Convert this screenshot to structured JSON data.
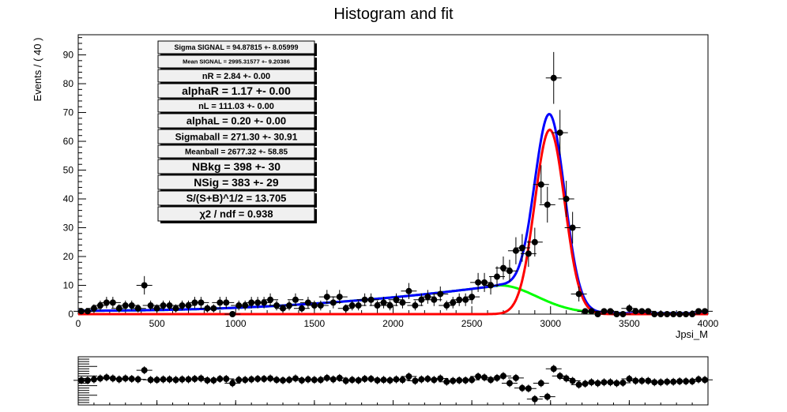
{
  "title": "Histogram and fit",
  "chart_data": {
    "type": "scatter",
    "title": "Histogram and fit",
    "xlabel": "Jpsi_M",
    "ylabel": "Events / ( 40 )",
    "xlim": [
      0,
      4000
    ],
    "ylim": [
      0,
      97
    ],
    "x_ticks": [
      "0",
      "500",
      "1000",
      "1500",
      "2000",
      "2500",
      "3000",
      "3500",
      "4000"
    ],
    "y_ticks": [
      "0",
      "10",
      "20",
      "30",
      "40",
      "50",
      "60",
      "70",
      "80",
      "90"
    ],
    "grid": false,
    "legend": "none",
    "stats_box": [
      "Sigma SIGNAL = 94.87815 +- 8.05999",
      "Mean SIGNAL = 2995.31577 +- 9.20386",
      "nR = 2.84 +- 0.00",
      "alphaR = 1.17 +- 0.00",
      "nL = 111.03 +- 0.00",
      "alphaL = 0.20 +- 0.00",
      "Sigmaball = 271.30 +- 30.91",
      "Meanball = 2677.32 +- 58.85",
      "NBkg = 398 +- 30",
      "NSig = 383 +- 29",
      "S/(S+B)^1/2 = 13.705",
      "χ2 / ndf = 0.938"
    ],
    "points": {
      "x": [
        20,
        60,
        100,
        140,
        180,
        220,
        260,
        300,
        340,
        380,
        420,
        460,
        500,
        540,
        580,
        620,
        660,
        700,
        740,
        780,
        820,
        860,
        900,
        940,
        980,
        1020,
        1060,
        1100,
        1140,
        1180,
        1220,
        1260,
        1300,
        1340,
        1380,
        1420,
        1460,
        1500,
        1540,
        1580,
        1620,
        1660,
        1700,
        1740,
        1780,
        1820,
        1860,
        1900,
        1940,
        1980,
        2020,
        2060,
        2100,
        2140,
        2180,
        2220,
        2260,
        2300,
        2340,
        2380,
        2420,
        2460,
        2500,
        2540,
        2580,
        2620,
        2660,
        2700,
        2740,
        2780,
        2820,
        2860,
        2900,
        2940,
        2980,
        3020,
        3060,
        3100,
        3140,
        3180,
        3220,
        3260,
        3300,
        3340,
        3380,
        3420,
        3460,
        3500,
        3540,
        3580,
        3620,
        3660,
        3700,
        3740,
        3780,
        3820,
        3860,
        3900,
        3940,
        3980
      ],
      "y": [
        1,
        1,
        2,
        3,
        4,
        4,
        2,
        3,
        3,
        2,
        10,
        3,
        2,
        3,
        3,
        2,
        3,
        3,
        4,
        4,
        2,
        2,
        4,
        4,
        0,
        3,
        3,
        4,
        4,
        4,
        5,
        3,
        2,
        3,
        5,
        2,
        4,
        3,
        3,
        6,
        4,
        6,
        2,
        3,
        3,
        5,
        5,
        3,
        4,
        3,
        5,
        4,
        8,
        3,
        5,
        6,
        5,
        7,
        3,
        4,
        5,
        5,
        6,
        11,
        11,
        10,
        13,
        16,
        15,
        22,
        23,
        21,
        25,
        45,
        38,
        82,
        63,
        40,
        30,
        7,
        1,
        1,
        0,
        1,
        1,
        0,
        0,
        2,
        1,
        1,
        1,
        0,
        0,
        0,
        0,
        0,
        0,
        0,
        1,
        1
      ],
      "err": [
        1,
        1,
        1.4,
        1.7,
        2,
        2,
        1.4,
        1.7,
        1.7,
        1.4,
        3.2,
        1.7,
        1.4,
        1.7,
        1.7,
        1.4,
        1.7,
        1.7,
        2,
        2,
        1.4,
        1.4,
        2,
        2,
        1,
        1.7,
        1.7,
        2,
        2,
        2,
        2.2,
        1.7,
        1.4,
        1.7,
        2.2,
        1.4,
        2,
        1.7,
        1.7,
        2.4,
        2,
        2.4,
        1.4,
        1.7,
        1.7,
        2.2,
        2.2,
        1.7,
        2,
        1.7,
        2.2,
        2,
        2.8,
        1.7,
        2.2,
        2.4,
        2.2,
        2.6,
        1.7,
        2,
        2.2,
        2.2,
        2.4,
        3.3,
        3.3,
        3.2,
        3.6,
        4,
        3.9,
        4.7,
        4.8,
        4.6,
        5,
        6.7,
        6.2,
        9,
        7.9,
        6.3,
        5.5,
        2.6,
        1,
        1,
        1,
        1,
        1,
        1,
        1,
        1.4,
        1,
        1,
        1,
        1,
        1,
        1,
        1,
        1,
        1,
        1,
        1,
        1
      ]
    },
    "curves": {
      "total_color": "#0000ff",
      "signal_color": "#ff0000",
      "background_color": "#00ff00"
    },
    "ratio_panel": {
      "points": [
        0.1,
        0.1,
        0.3,
        0.5,
        0.7,
        0.5,
        0.3,
        0.5,
        0.4,
        0.3,
        2.2,
        0.2,
        0.2,
        0.3,
        0.3,
        0.2,
        0.3,
        0.3,
        0.4,
        0.5,
        0.1,
        0.1,
        0.4,
        0.4,
        -0.5,
        0.2,
        0.2,
        0.3,
        0.4,
        0.4,
        0.5,
        0.2,
        0.1,
        0.2,
        0.5,
        0.1,
        0.3,
        0.2,
        0.2,
        0.6,
        0.3,
        0.6,
        0.0,
        0.2,
        0.1,
        0.4,
        0.4,
        0.1,
        0.2,
        0.1,
        0.3,
        0.2,
        0.9,
        0.0,
        0.3,
        0.4,
        0.2,
        0.5,
        -0.2,
        0.0,
        0.1,
        0.1,
        0.2,
        0.9,
        0.7,
        0.2,
        0.6,
        1.0,
        -0.5,
        0.6,
        -1.5,
        -1.6,
        -3.8,
        -0.5,
        -3.3,
        2.5,
        1.0,
        0.5,
        0.0,
        -0.8,
        -0.6,
        -0.3,
        -0.5,
        -0.3,
        -0.3,
        -0.5,
        -0.4,
        0.4,
        0.0,
        0.0,
        0.0,
        -0.3,
        -0.3,
        -0.2,
        -0.2,
        -0.1,
        -0.1,
        -0.1,
        0.3,
        0.2
      ],
      "ylim": [
        -5,
        5
      ]
    }
  }
}
